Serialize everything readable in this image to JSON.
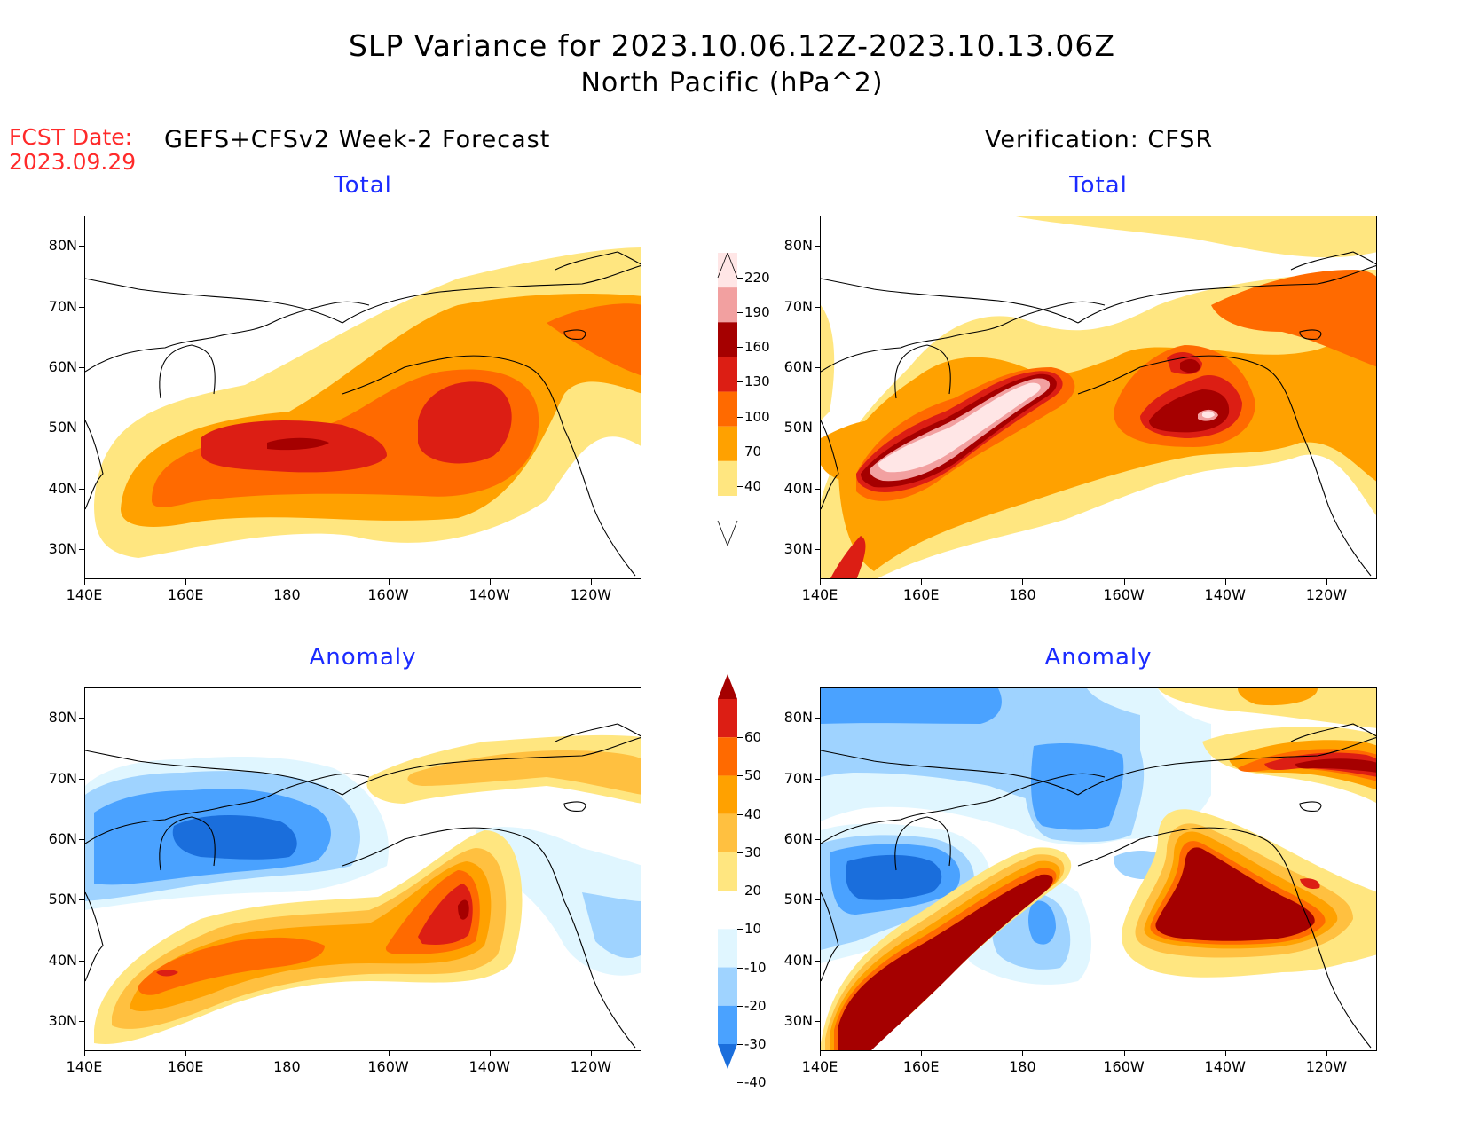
{
  "header": {
    "title_line1": "SLP Variance for 2023.10.06.12Z-2023.10.13.06Z",
    "title_line2": "North Pacific (hPa^2)",
    "fcst_label": "FCST Date:",
    "fcst_date": "2023.09.29",
    "left_header": "GEFS+CFSv2 Week-2 Forecast",
    "right_header": "Verification: CFSR"
  },
  "panels": {
    "forecast_total": {
      "title": "Total"
    },
    "verify_total": {
      "title": "Total"
    },
    "forecast_anomaly": {
      "title": "Anomaly"
    },
    "verify_anomaly": {
      "title": "Anomaly"
    }
  },
  "axes": {
    "lat_labels": [
      "80N",
      "70N",
      "60N",
      "50N",
      "40N",
      "30N"
    ],
    "lat_values": [
      80,
      70,
      60,
      50,
      40,
      30
    ],
    "lon_labels": [
      "140E",
      "160E",
      "180",
      "160W",
      "140W",
      "120W"
    ],
    "lon_values": [
      140,
      160,
      180,
      200,
      220,
      240
    ],
    "lon_range": [
      140,
      250
    ],
    "lat_range": [
      25,
      85
    ]
  },
  "colorbars": {
    "total": {
      "labels": [
        "220",
        "190",
        "160",
        "130",
        "100",
        "70",
        "40"
      ],
      "colors_top_to_bottom": [
        "#ffe6e6",
        "#f2a0a0",
        "#a50000",
        "#dc1e14",
        "#ff6a00",
        "#ffa100",
        "#ffe680"
      ]
    },
    "anomaly": {
      "labels": [
        "60",
        "50",
        "40",
        "30",
        "20",
        "10",
        "-10",
        "-20",
        "-30",
        "-40"
      ],
      "colors_top_to_bottom": [
        "#a50000",
        "#dc1e14",
        "#ff6a00",
        "#ffa100",
        "#ffc040",
        "#ffe680",
        "#ffffff",
        "#e0f6ff",
        "#9fd3ff",
        "#4aa2ff",
        "#1a6edc"
      ]
    }
  }
}
